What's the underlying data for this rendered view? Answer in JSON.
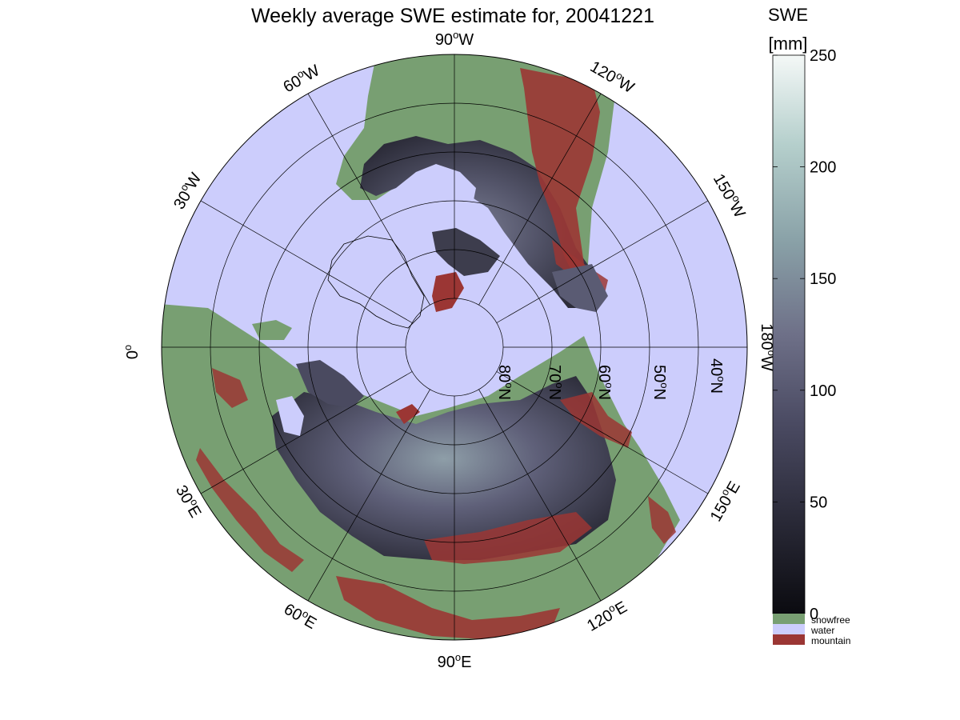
{
  "title": "Weekly average SWE estimate for, 20041221",
  "colorbar": {
    "title_line1": "SWE",
    "title_line2": "[mm]",
    "ticks": [
      {
        "value": 0,
        "label": "0"
      },
      {
        "value": 50,
        "label": "50"
      },
      {
        "value": 100,
        "label": "100"
      },
      {
        "value": 150,
        "label": "150"
      },
      {
        "value": 200,
        "label": "200"
      },
      {
        "value": 250,
        "label": "250"
      }
    ],
    "range": [
      0,
      250
    ],
    "colors": [
      "#0b0b10",
      "#2a2a38",
      "#4a4a62",
      "#6e7088",
      "#8aa2a8",
      "#b5cfcc",
      "#f4f8f7"
    ]
  },
  "legend": [
    {
      "label": "snowfree",
      "color": "#789f72"
    },
    {
      "label": "water",
      "color": "#cccdfc"
    },
    {
      "label": "mountain",
      "color": "#9b3634"
    }
  ],
  "meridian_labels": [
    {
      "key": "m90w",
      "text": "90",
      "suffix": "W"
    },
    {
      "key": "m120w",
      "text": "120",
      "suffix": "W"
    },
    {
      "key": "m60w",
      "text": "60",
      "suffix": "W"
    },
    {
      "key": "m150w",
      "text": "150",
      "suffix": "W"
    },
    {
      "key": "m30w",
      "text": "30",
      "suffix": "W"
    },
    {
      "key": "m0",
      "text": "0",
      "suffix": ""
    },
    {
      "key": "m180w",
      "text": "180",
      "suffix": "W"
    },
    {
      "key": "m30e",
      "text": "30",
      "suffix": "E"
    },
    {
      "key": "m150e",
      "text": "150",
      "suffix": "E"
    },
    {
      "key": "m60e",
      "text": "60",
      "suffix": "E"
    },
    {
      "key": "m120e",
      "text": "120",
      "suffix": "E"
    },
    {
      "key": "m90e",
      "text": "90",
      "suffix": "E"
    }
  ],
  "parallel_labels": [
    {
      "key": "p80",
      "text": "80",
      "suffix": "N"
    },
    {
      "key": "p70",
      "text": "70",
      "suffix": "N"
    },
    {
      "key": "p60",
      "text": "60",
      "suffix": "N"
    },
    {
      "key": "p50",
      "text": "50",
      "suffix": "N"
    },
    {
      "key": "p40",
      "text": "40",
      "suffix": "N"
    }
  ],
  "map_colors": {
    "water": "#cccdfc",
    "snowfree": "#789f72",
    "mountain": "#9b3634",
    "snow_dark": "#2f2f3c",
    "snow_mid": "#5a5b73",
    "snow_light": "#8c9ba6"
  }
}
